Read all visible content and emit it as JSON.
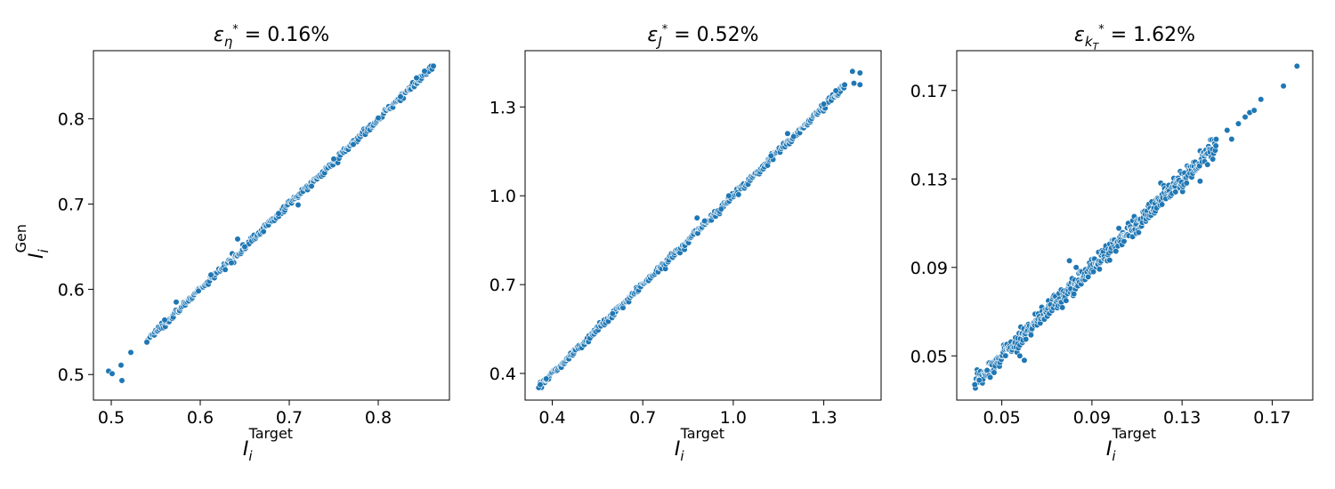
{
  "chart_data": [
    {
      "type": "scatter",
      "title": {
        "symbol": "ε",
        "sub": "η",
        "sup": "*",
        "value": "= 0.16%"
      },
      "xlabel": {
        "base": "I",
        "sub": "i",
        "sup": "Target"
      },
      "ylabel": {
        "base": "I",
        "sub": "i",
        "sup": "Gen"
      },
      "xlim": [
        0.48,
        0.88
      ],
      "ylim": [
        0.47,
        0.88
      ],
      "xticks": [
        0.5,
        0.6,
        0.7,
        0.8
      ],
      "yticks": [
        0.5,
        0.6,
        0.7,
        0.8
      ],
      "tick_labels_x": [
        "0.5",
        "0.6",
        "0.7",
        "0.8"
      ],
      "tick_labels_y": [
        "0.5",
        "0.6",
        "0.7",
        "0.8"
      ],
      "color": "#1f77b4",
      "scatter_band": {
        "x_from": 0.54,
        "x_to": 0.86,
        "count": 320,
        "spread": 0.0018
      },
      "points": [
        [
          0.497,
          0.504
        ],
        [
          0.501,
          0.501
        ],
        [
          0.512,
          0.493
        ],
        [
          0.511,
          0.511
        ],
        [
          0.522,
          0.526
        ],
        [
          0.54,
          0.538
        ],
        [
          0.56,
          0.564
        ],
        [
          0.573,
          0.585
        ],
        [
          0.598,
          0.598
        ],
        [
          0.612,
          0.617
        ],
        [
          0.635,
          0.631
        ],
        [
          0.642,
          0.659
        ],
        [
          0.65,
          0.65
        ],
        [
          0.688,
          0.689
        ],
        [
          0.71,
          0.699
        ],
        [
          0.725,
          0.721
        ],
        [
          0.75,
          0.753
        ],
        [
          0.772,
          0.77
        ],
        [
          0.8,
          0.801
        ],
        [
          0.825,
          0.826
        ],
        [
          0.843,
          0.848
        ],
        [
          0.852,
          0.856
        ],
        [
          0.862,
          0.862
        ]
      ]
    },
    {
      "type": "scatter",
      "title": {
        "symbol": "ε",
        "sub": "J",
        "sup": "*",
        "value": "= 0.52%"
      },
      "xlabel": {
        "base": "I",
        "sub": "i",
        "sup": "Target"
      },
      "ylabel": {
        "base": "",
        "sub": "",
        "sup": ""
      },
      "xlim": [
        0.31,
        1.49
      ],
      "ylim": [
        0.31,
        1.49
      ],
      "xticks": [
        0.4,
        0.7,
        1.0,
        1.3
      ],
      "yticks": [
        0.4,
        0.7,
        1.0,
        1.3
      ],
      "tick_labels_x": [
        "0.4",
        "0.7",
        "1.0",
        "1.3"
      ],
      "tick_labels_y": [
        "0.4",
        "0.7",
        "1.0",
        "1.3"
      ],
      "color": "#1f77b4",
      "scatter_band": {
        "x_from": 0.36,
        "x_to": 1.37,
        "count": 360,
        "spread": 0.006
      },
      "points": [
        [
          0.355,
          0.352
        ],
        [
          0.36,
          0.362
        ],
        [
          0.38,
          0.382
        ],
        [
          0.6,
          0.602
        ],
        [
          0.88,
          0.925
        ],
        [
          0.905,
          0.915
        ],
        [
          0.96,
          0.955
        ],
        [
          0.985,
          1.0
        ],
        [
          1.125,
          1.135
        ],
        [
          1.18,
          1.21
        ],
        [
          1.2,
          1.2
        ],
        [
          1.3,
          1.31
        ],
        [
          1.34,
          1.355
        ],
        [
          1.395,
          1.42
        ],
        [
          1.4,
          1.38
        ],
        [
          1.42,
          1.415
        ],
        [
          1.42,
          1.375
        ]
      ]
    },
    {
      "type": "scatter",
      "title": {
        "symbol": "ε",
        "sub": "k",
        "subsub": "T",
        "sup": "*",
        "value": "= 1.62%"
      },
      "xlabel": {
        "base": "I",
        "sub": "i",
        "sup": "Target"
      },
      "ylabel": {
        "base": "",
        "sub": "",
        "sup": ""
      },
      "xlim": [
        0.03,
        0.188
      ],
      "ylim": [
        0.03,
        0.188
      ],
      "xticks": [
        0.05,
        0.09,
        0.13,
        0.17
      ],
      "yticks": [
        0.05,
        0.09,
        0.13,
        0.17
      ],
      "tick_labels_x": [
        "0.05",
        "0.09",
        "0.13",
        "0.17"
      ],
      "tick_labels_y": [
        "0.05",
        "0.09",
        "0.13",
        "0.17"
      ],
      "color": "#1f77b4",
      "scatter_band": {
        "x_from": 0.038,
        "x_to": 0.145,
        "count": 420,
        "spread": 0.0022
      },
      "points": [
        [
          0.038,
          0.037
        ],
        [
          0.04,
          0.039
        ],
        [
          0.058,
          0.05
        ],
        [
          0.06,
          0.048
        ],
        [
          0.08,
          0.093
        ],
        [
          0.082,
          0.078
        ],
        [
          0.083,
          0.09
        ],
        [
          0.138,
          0.129
        ],
        [
          0.145,
          0.145
        ],
        [
          0.15,
          0.152
        ],
        [
          0.152,
          0.148
        ],
        [
          0.155,
          0.155
        ],
        [
          0.158,
          0.158
        ],
        [
          0.16,
          0.16
        ],
        [
          0.162,
          0.161
        ],
        [
          0.165,
          0.166
        ],
        [
          0.175,
          0.172
        ],
        [
          0.181,
          0.181
        ]
      ]
    }
  ]
}
